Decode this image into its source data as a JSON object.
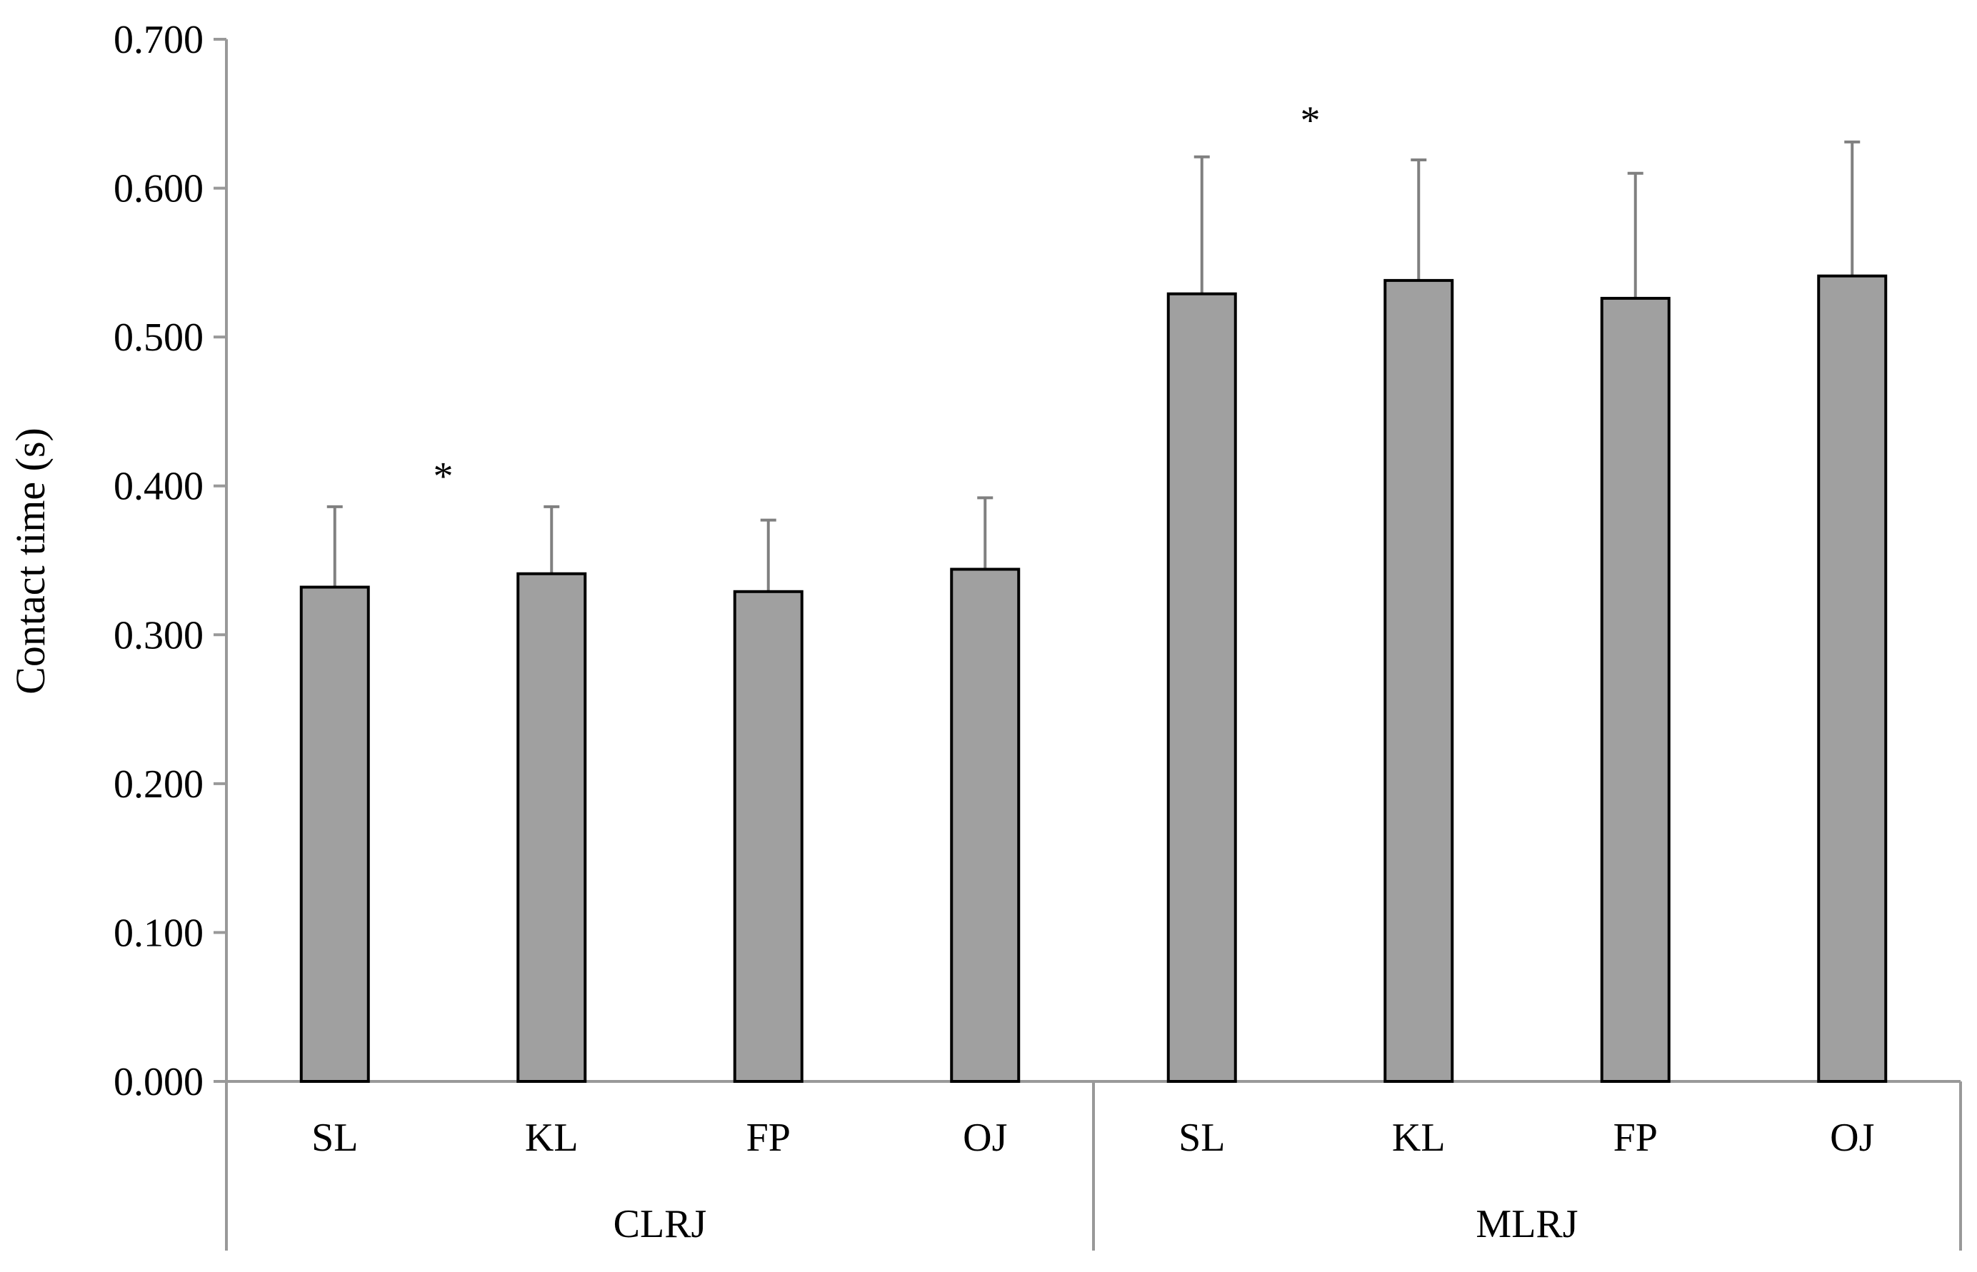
{
  "chart_data": {
    "type": "bar",
    "ylabel": "Contact time (s)",
    "ylim": [
      0,
      0.7
    ],
    "ytick_step": 0.1,
    "ytick_labels": [
      "0.000",
      "0.100",
      "0.200",
      "0.300",
      "0.400",
      "0.500",
      "0.600",
      "0.700"
    ],
    "groups": [
      {
        "name": "CLRJ",
        "categories": [
          "SL",
          "KL",
          "FP",
          "OJ"
        ],
        "values": [
          0.332,
          0.341,
          0.329,
          0.344
        ],
        "errors": [
          0.054,
          0.045,
          0.048,
          0.048
        ],
        "annotation": "*"
      },
      {
        "name": "MLRJ",
        "categories": [
          "SL",
          "KL",
          "FP",
          "OJ"
        ],
        "values": [
          0.529,
          0.538,
          0.526,
          0.541
        ],
        "errors": [
          0.092,
          0.081,
          0.084,
          0.09
        ],
        "annotation": "*"
      }
    ],
    "bar_color": "#a0a0a0",
    "bar_edge_color": "#000000",
    "error_bar_color": "#808080",
    "axis_color": "#999999",
    "grid": false,
    "legend": "none"
  }
}
